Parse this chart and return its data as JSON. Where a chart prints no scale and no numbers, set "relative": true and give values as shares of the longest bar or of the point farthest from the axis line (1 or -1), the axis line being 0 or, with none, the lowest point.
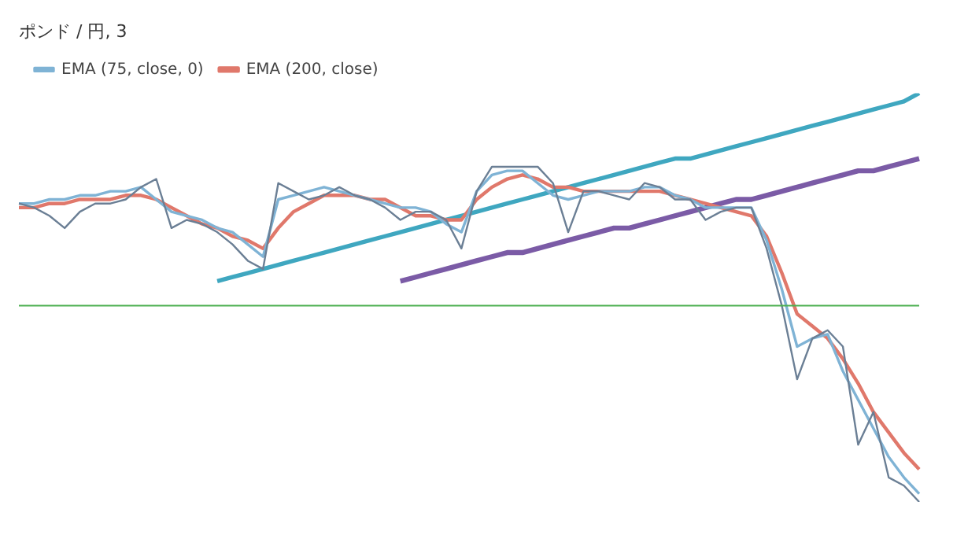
{
  "chart_data": {
    "type": "line",
    "title": "ポンド / 円, 3",
    "relative": true,
    "legend": "top left",
    "grid": false,
    "tick_labels": false,
    "marker": "none",
    "categories": [
      null,
      null,
      null,
      null,
      null,
      null,
      null,
      null,
      null,
      null,
      null,
      null,
      null,
      null,
      null,
      null,
      null,
      null,
      null,
      null,
      null,
      null,
      null,
      null,
      null,
      null,
      null,
      null,
      null,
      null,
      null,
      null,
      null,
      null,
      null,
      null,
      null,
      null,
      null,
      null,
      null,
      null,
      null,
      null,
      null,
      null,
      null,
      null,
      null,
      null,
      null,
      null,
      null,
      null,
      null,
      null,
      null,
      null,
      null,
      null
    ],
    "series": [
      {
        "color": "#6b7f95",
        "values": [
          0.73,
          0.72,
          0.7,
          0.67,
          0.71,
          0.73,
          0.73,
          0.74,
          0.77,
          0.79,
          0.67,
          0.69,
          0.68,
          0.66,
          0.63,
          0.59,
          0.57,
          0.78,
          0.76,
          0.74,
          0.75,
          0.77,
          0.75,
          0.74,
          0.72,
          0.69,
          0.71,
          0.71,
          0.69,
          0.62,
          0.76,
          0.82,
          0.82,
          0.82,
          0.82,
          0.78,
          0.66,
          0.76,
          0.76,
          0.75,
          0.74,
          0.78,
          0.77,
          0.74,
          0.74,
          0.69,
          0.71,
          0.72,
          0.72,
          0.62,
          0.48,
          0.3,
          0.4,
          0.42,
          0.38,
          0.14,
          0.22,
          0.06,
          0.04,
          0
        ]
      },
      {
        "name": "EMA (75, close, 0)",
        "color": "#7fb3d5",
        "values": [
          0.73,
          0.73,
          0.74,
          0.74,
          0.75,
          0.75,
          0.76,
          0.76,
          0.77,
          0.74,
          0.71,
          0.7,
          0.69,
          0.67,
          0.66,
          0.63,
          0.6,
          0.74,
          0.75,
          0.76,
          0.77,
          0.76,
          0.75,
          0.74,
          0.73,
          0.72,
          0.72,
          0.71,
          0.68,
          0.66,
          0.76,
          0.8,
          0.81,
          0.81,
          0.78,
          0.75,
          0.74,
          0.75,
          0.76,
          0.76,
          0.76,
          0.77,
          0.77,
          0.75,
          0.74,
          0.72,
          0.72,
          0.72,
          0.72,
          0.64,
          0.52,
          0.38,
          0.4,
          0.41,
          0.32,
          0.25,
          0.18,
          0.11,
          0.06,
          0.02
        ]
      },
      {
        "name": "EMA (200, close)",
        "color": "#e0786b",
        "values": [
          0.72,
          0.72,
          0.73,
          0.73,
          0.74,
          0.74,
          0.74,
          0.75,
          0.75,
          0.74,
          0.72,
          0.7,
          0.68,
          0.67,
          0.65,
          0.64,
          0.62,
          0.67,
          0.71,
          0.73,
          0.75,
          0.75,
          0.75,
          0.74,
          0.74,
          0.72,
          0.7,
          0.7,
          0.69,
          0.69,
          0.74,
          0.77,
          0.79,
          0.8,
          0.79,
          0.77,
          0.77,
          0.76,
          0.76,
          0.76,
          0.76,
          0.76,
          0.76,
          0.75,
          0.74,
          0.73,
          0.72,
          0.71,
          0.7,
          0.65,
          0.56,
          0.46,
          0.43,
          0.4,
          0.35,
          0.29,
          0.22,
          0.17,
          0.12,
          0.08
        ]
      },
      {
        "color": "#3fa7c0",
        "values": [
          null,
          null,
          null,
          null,
          null,
          null,
          null,
          null,
          null,
          null,
          null,
          null,
          null,
          0.54,
          0.55,
          0.56,
          0.57,
          0.58,
          0.59,
          0.6,
          0.61,
          0.62,
          0.63,
          0.64,
          0.65,
          0.66,
          0.67,
          0.68,
          0.69,
          0.7,
          0.71,
          0.72,
          0.73,
          0.74,
          0.75,
          0.76,
          0.77,
          0.78,
          0.79,
          0.8,
          0.81,
          0.82,
          0.83,
          0.84,
          0.84,
          0.85,
          0.86,
          0.87,
          0.88,
          0.89,
          0.9,
          0.91,
          0.92,
          0.93,
          0.94,
          0.95,
          0.96,
          0.97,
          0.98,
          1
        ]
      },
      {
        "color": "#7b5ba6",
        "values": [
          null,
          null,
          null,
          null,
          null,
          null,
          null,
          null,
          null,
          null,
          null,
          null,
          null,
          null,
          null,
          null,
          null,
          null,
          null,
          null,
          null,
          null,
          null,
          null,
          null,
          0.54,
          0.55,
          0.56,
          0.57,
          0.58,
          0.59,
          0.6,
          0.61,
          0.61,
          0.62,
          0.63,
          0.64,
          0.65,
          0.66,
          0.67,
          0.67,
          0.68,
          0.69,
          0.7,
          0.71,
          0.72,
          0.73,
          0.74,
          0.74,
          0.75,
          0.76,
          0.77,
          0.78,
          0.79,
          0.8,
          0.81,
          0.81,
          0.82,
          0.83,
          0.84
        ]
      }
    ],
    "ref_lines": [
      {
        "axis": "y",
        "value": 0.48,
        "color": "#4caf50"
      }
    ]
  }
}
